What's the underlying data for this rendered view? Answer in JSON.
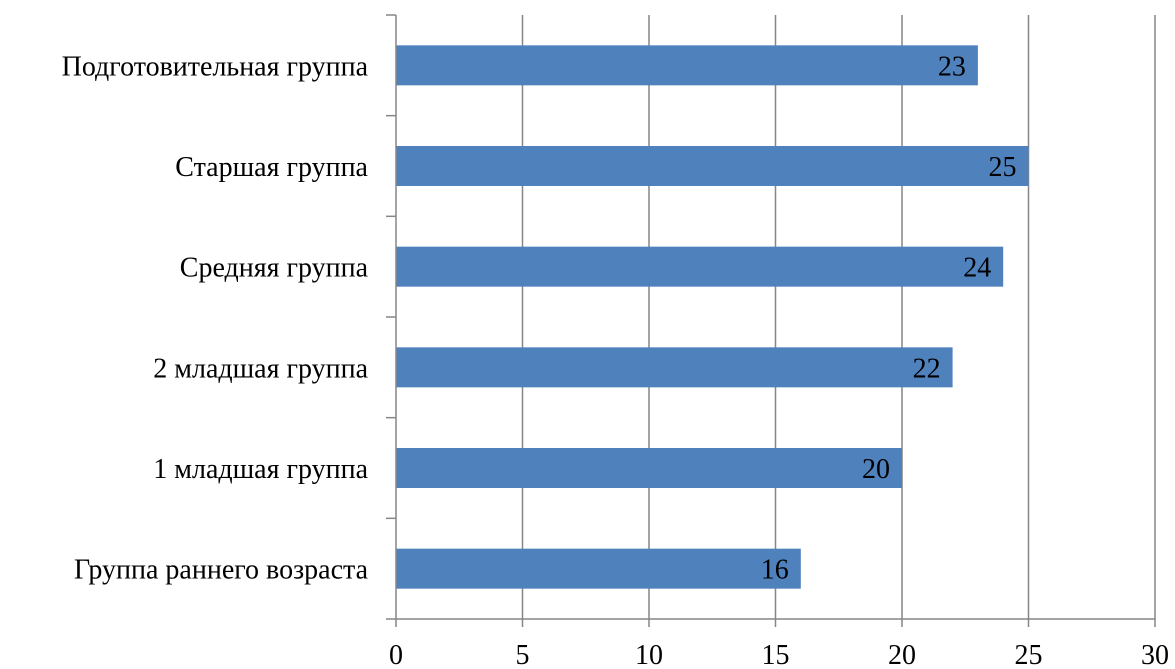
{
  "chart_data": {
    "type": "bar",
    "orientation": "horizontal",
    "categories": [
      "Группа раннего возраста",
      "1 младшая группа",
      "2 младшая группа",
      "Средняя группа",
      "Старшая группа",
      "Подготовительная группа"
    ],
    "values": [
      16,
      20,
      22,
      24,
      25,
      23
    ],
    "data_labels": [
      "16",
      "20",
      "22",
      "24",
      "25",
      "23"
    ],
    "xlim": [
      0,
      30
    ],
    "x_ticks": [
      0,
      5,
      10,
      15,
      20,
      25,
      30
    ],
    "x_tick_labels": [
      "0",
      "5",
      "10",
      "15",
      "20",
      "25",
      "30"
    ],
    "grid": true,
    "legend": "none",
    "colors": {
      "bar": "#4F81BD",
      "grid": "#868686",
      "axis": "#868686",
      "text": "#000000"
    }
  }
}
